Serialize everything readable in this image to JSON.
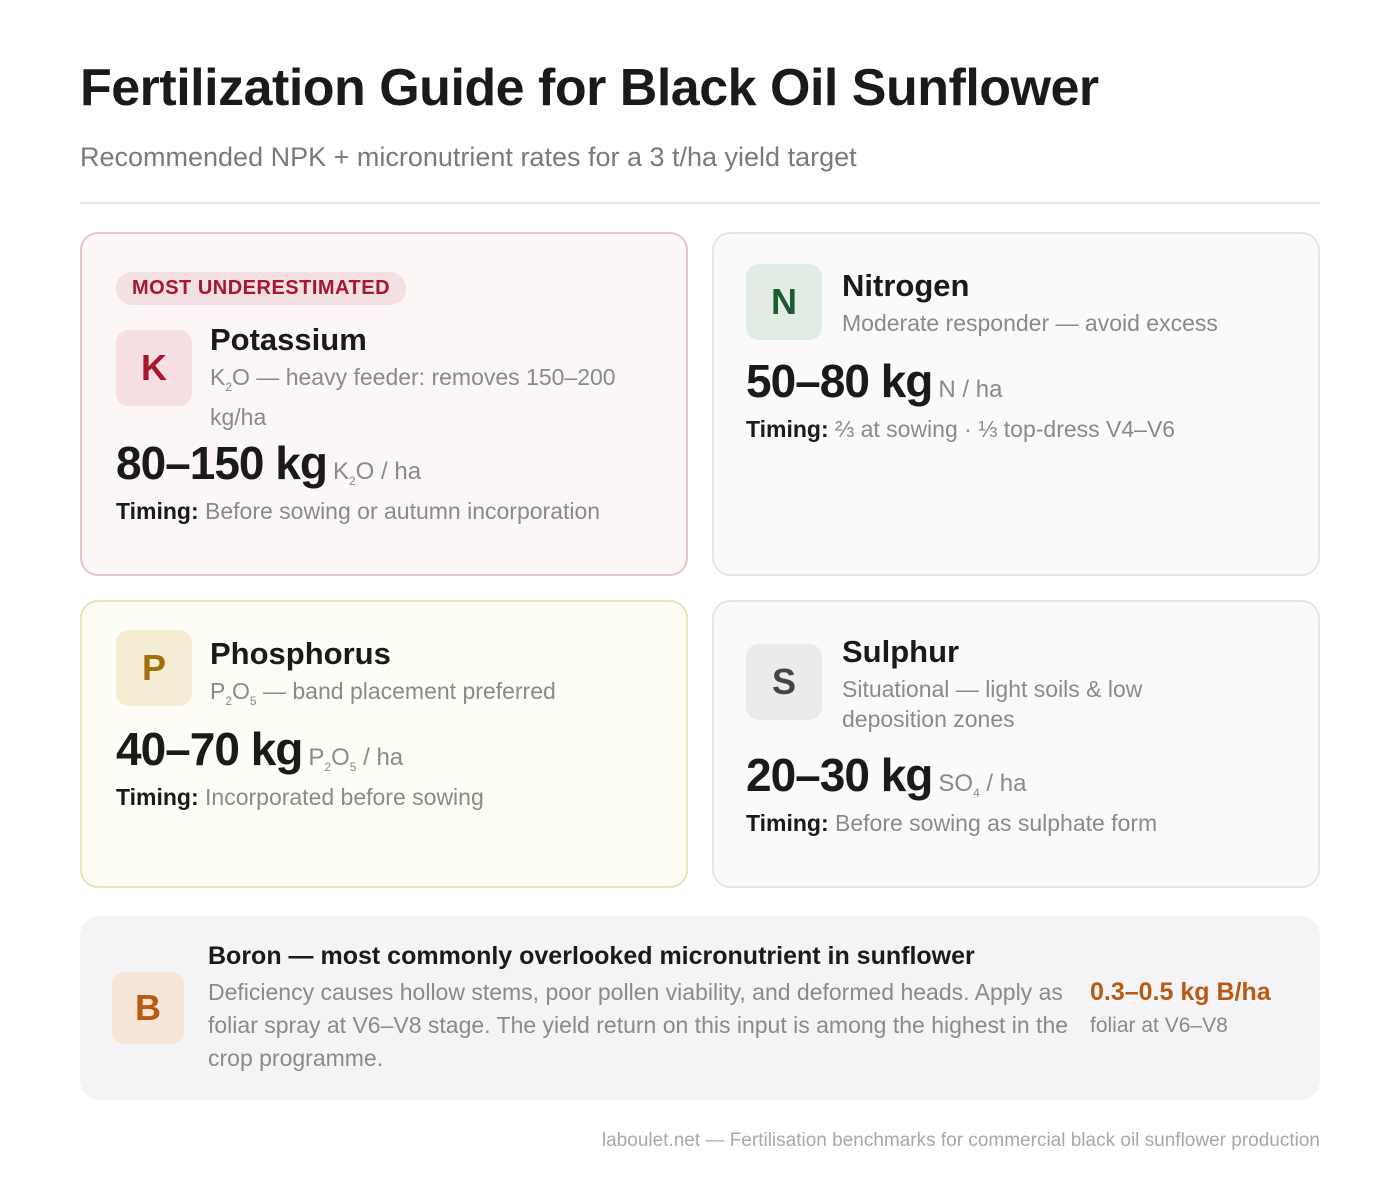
{
  "header": {
    "title": "Fertilization Guide for Black Oil Sunflower",
    "subtitle": "Recommended NPK + micronutrient rates for a 3 t/ha yield target"
  },
  "cards": {
    "potassium": {
      "badge": "MOST UNDERESTIMATED",
      "letter": "K",
      "name": "Potassium",
      "desc": [
        {
          "t": "K"
        },
        {
          "t": "2",
          "sub": true
        },
        {
          "t": "O — heavy feeder: removes 150–200 kg/ha"
        }
      ],
      "value": "80–150 kg",
      "unit": [
        {
          "t": "K"
        },
        {
          "t": "2",
          "sub": true
        },
        {
          "t": "O / ha"
        }
      ],
      "timing_label": "Timing:",
      "timing": "Before sowing or autumn incorporation",
      "accent": "#a8162b"
    },
    "nitrogen": {
      "letter": "N",
      "name": "Nitrogen",
      "desc": [
        {
          "t": "Moderate responder — avoid excess"
        }
      ],
      "value": "50–80 kg",
      "unit": [
        {
          "t": "N / ha"
        }
      ],
      "timing_label": "Timing:",
      "timing": "⅔ at sowing · ⅓ top-dress V4–V6",
      "accent": "#1e5a32"
    },
    "phosphorus": {
      "letter": "P",
      "name": "Phosphorus",
      "desc": [
        {
          "t": "P"
        },
        {
          "t": "2",
          "sub": true
        },
        {
          "t": "O"
        },
        {
          "t": "5",
          "sub": true
        },
        {
          "t": " — band placement preferred"
        }
      ],
      "value": "40–70 kg",
      "unit": [
        {
          "t": "P"
        },
        {
          "t": "2",
          "sub": true
        },
        {
          "t": "O"
        },
        {
          "t": "5",
          "sub": true
        },
        {
          "t": " / ha"
        }
      ],
      "timing_label": "Timing:",
      "timing": "Incorporated before sowing",
      "accent": "#a0700f"
    },
    "sulphur": {
      "letter": "S",
      "name": "Sulphur",
      "desc": [
        {
          "t": "Situational — light soils & low deposition zones"
        }
      ],
      "value": "20–30 kg",
      "unit": [
        {
          "t": "SO"
        },
        {
          "t": "4",
          "sub": true
        },
        {
          "t": " / ha"
        }
      ],
      "timing_label": "Timing:",
      "timing": "Before sowing as sulphate form",
      "accent": "#444444"
    }
  },
  "boron": {
    "letter": "B",
    "heading": "Boron — most commonly overlooked micronutrient in sunflower",
    "text": "Deficiency causes hollow stems, poor pollen viability, and deformed heads. Apply as foliar spray at V6–V8 stage. The yield return on this input is among the highest in the crop programme.",
    "value": "0.3–0.5 kg B/ha",
    "value_note": "foliar at V6–V8",
    "accent": "#b85a12"
  },
  "footer": "laboulet.net — Fertilisation benchmarks for commercial black oil sunflower production"
}
